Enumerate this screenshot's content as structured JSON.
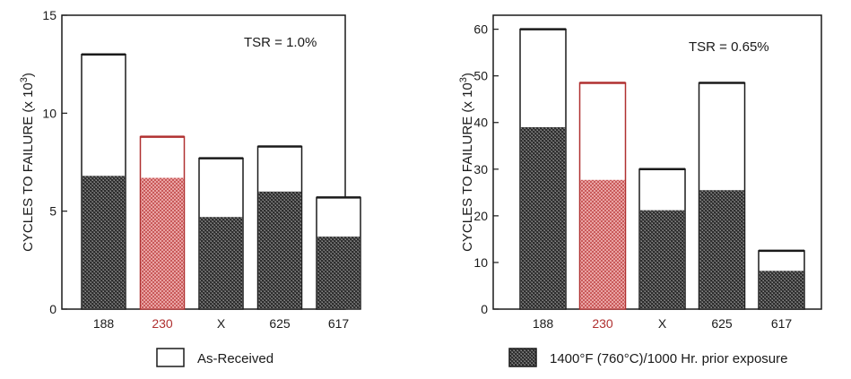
{
  "chart_data": [
    {
      "type": "bar",
      "categories": [
        "188",
        "230",
        "X",
        "625",
        "617"
      ],
      "highlight_category": "230",
      "series": [
        {
          "name": "As-Received",
          "values": [
            13.0,
            8.8,
            7.7,
            8.3,
            5.7
          ]
        },
        {
          "name": "1400°F (760°C)/1000 Hr. prior exposure",
          "values": [
            6.8,
            6.7,
            4.7,
            6.0,
            3.7
          ]
        }
      ],
      "ylabel": "CYCLES TO FAILURE (x 10",
      "ylabel_sup": "3",
      "ylabel_end": ")",
      "ylim": [
        0,
        15
      ],
      "yticks": [
        0,
        5,
        10,
        15
      ],
      "annotation": "TSR = 1.0%",
      "grid": false
    },
    {
      "type": "bar",
      "categories": [
        "188",
        "230",
        "X",
        "625",
        "617"
      ],
      "highlight_category": "230",
      "series": [
        {
          "name": "As-Received",
          "values": [
            60,
            48.5,
            30,
            48.5,
            12.5
          ]
        },
        {
          "name": "1400°F (760°C)/1000 Hr. prior exposure",
          "values": [
            39,
            27.7,
            21.2,
            25.5,
            8.2
          ]
        }
      ],
      "ylabel": "CYCLES TO FAILURE (x 10",
      "ylabel_sup": "3",
      "ylabel_end": ")",
      "ylim": [
        0,
        63
      ],
      "yticks": [
        0,
        10,
        20,
        30,
        40,
        50,
        60
      ],
      "annotation": "TSR = 0.65%",
      "grid": false
    }
  ],
  "legend": {
    "as_received": "As-Received",
    "exposed": "1400°F (760°C)/1000 Hr. prior exposure"
  },
  "colors": {
    "axis": "#1a1a1a",
    "bar_outline": "#1a1a1a",
    "highlight": "#b03030",
    "highlight_fill": "#e8a0a0",
    "exposed_fill": "#555555"
  }
}
